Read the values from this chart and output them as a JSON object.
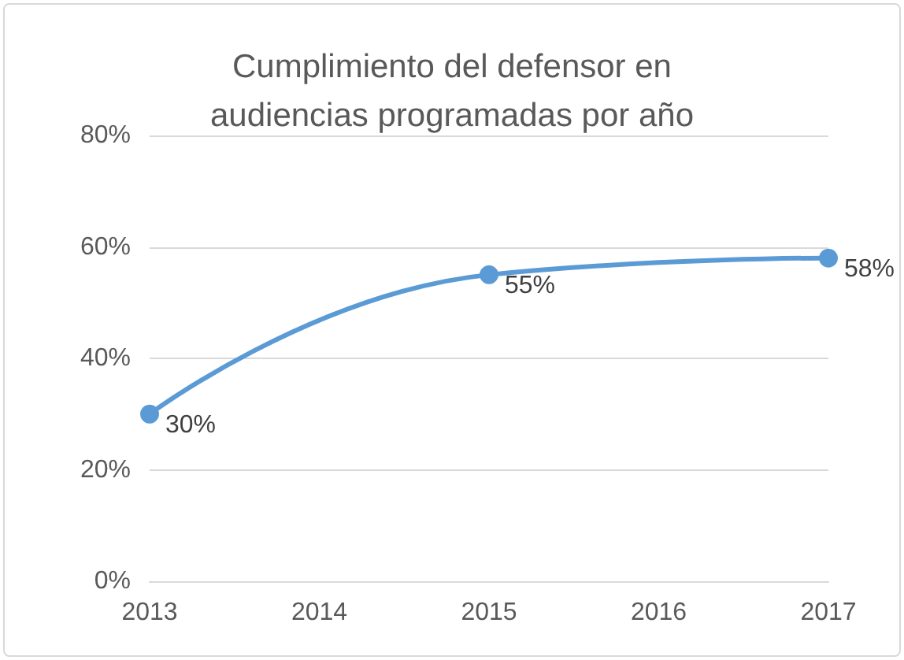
{
  "chart_data": {
    "type": "line",
    "title": "Cumplimiento del defensor en\naudiencias programadas por año",
    "x": [
      2013,
      2015,
      2017
    ],
    "series": [
      {
        "color": "#5b9bd5",
        "values": [
          30,
          55,
          58
        ],
        "value_labels": [
          "30%",
          "55%",
          "58%"
        ]
      }
    ],
    "xlim": [
      2013,
      2017
    ],
    "xticks": [
      2013,
      2014,
      2015,
      2016,
      2017
    ],
    "ylim": [
      0,
      80
    ],
    "yticks": [
      {
        "value": 0,
        "label": "0%"
      },
      {
        "value": 20,
        "label": "20%"
      },
      {
        "value": 40,
        "label": "40%"
      },
      {
        "value": 60,
        "label": "60%"
      },
      {
        "value": 80,
        "label": "80%"
      }
    ],
    "grid": "y",
    "marker": "circle"
  }
}
